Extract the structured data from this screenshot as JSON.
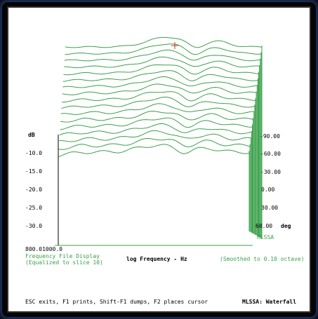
{
  "screen": {
    "left_axis": {
      "unit": "dB",
      "ticks": [
        "-10.0",
        "-15.0",
        "-20.0",
        "-25.0",
        "-30.0"
      ]
    },
    "right_axis": {
      "unit": "deg",
      "ticks": [
        "-90.00",
        "-60.00",
        "-30.00",
        "0.00",
        "30.00",
        "60.00"
      ]
    },
    "x_axis": {
      "start_label": "800.01000.0",
      "label": "log Frequency - Hz"
    },
    "legend": {
      "title_line1": "Frequency File Display",
      "title_line2": "(Equalized to slice 10)",
      "smoothing": "(Smoothed to 0.10 octave)",
      "watermark": "MLSSA"
    },
    "status_bar": {
      "help_text": "ESC exits, F1 prints, Shift-F1 dumps, F2 places cursor",
      "mode_text": "MLSSA: Waterfall"
    },
    "colors": {
      "trace": "#3aa04a",
      "background": "#ffffff",
      "frame": "#050505",
      "cursor": "#c0392b"
    }
  }
}
